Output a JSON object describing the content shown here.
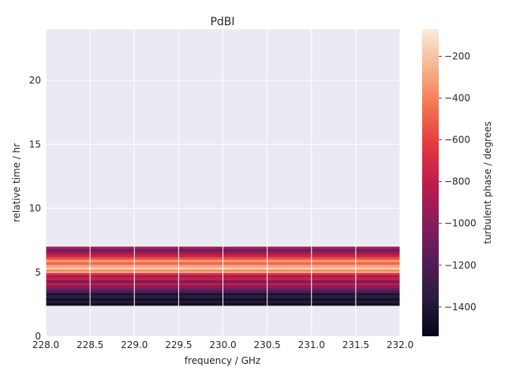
{
  "chart_data": {
    "type": "heatmap",
    "title": "PdBI",
    "xlabel": "frequency / GHz",
    "ylabel": "relative time / hr",
    "colorbar_label": "turbulent phase / degrees",
    "xlim": [
      228.0,
      232.0
    ],
    "ylim": [
      0,
      24
    ],
    "x_ticks": [
      "228.0",
      "228.5",
      "229.0",
      "229.5",
      "230.0",
      "230.5",
      "231.0",
      "231.5",
      "232.0"
    ],
    "y_ticks": [
      "0",
      "5",
      "10",
      "15",
      "20"
    ],
    "colorbar_ticks": [
      "−200",
      "−400",
      "−600",
      "−800",
      "−1000",
      "−1200",
      "−1400"
    ],
    "colorbar_range": [
      -1540,
      -70
    ],
    "colormap": "rocket",
    "grid": true,
    "background": "#eaeaf2",
    "data_time_range": [
      2.4,
      7.0
    ],
    "rows": [
      {
        "t": 2.4,
        "phase": -1460
      },
      {
        "t": 2.6,
        "phase": -1380
      },
      {
        "t": 2.8,
        "phase": -1470
      },
      {
        "t": 3.0,
        "phase": -1330
      },
      {
        "t": 3.2,
        "phase": -1420
      },
      {
        "t": 3.4,
        "phase": -1200
      },
      {
        "t": 3.6,
        "phase": -1100
      },
      {
        "t": 3.8,
        "phase": -980
      },
      {
        "t": 4.0,
        "phase": -820
      },
      {
        "t": 4.2,
        "phase": -1050
      },
      {
        "t": 4.4,
        "phase": -760
      },
      {
        "t": 4.6,
        "phase": -880
      },
      {
        "t": 4.8,
        "phase": -650
      },
      {
        "t": 5.0,
        "phase": -420
      },
      {
        "t": 5.2,
        "phase": -200
      },
      {
        "t": 5.4,
        "phase": -300
      },
      {
        "t": 5.6,
        "phase": -480
      },
      {
        "t": 5.8,
        "phase": -340
      },
      {
        "t": 6.0,
        "phase": -560
      },
      {
        "t": 6.2,
        "phase": -760
      },
      {
        "t": 6.4,
        "phase": -900
      },
      {
        "t": 6.6,
        "phase": -1080
      },
      {
        "t": 6.8,
        "phase": -950
      }
    ]
  }
}
